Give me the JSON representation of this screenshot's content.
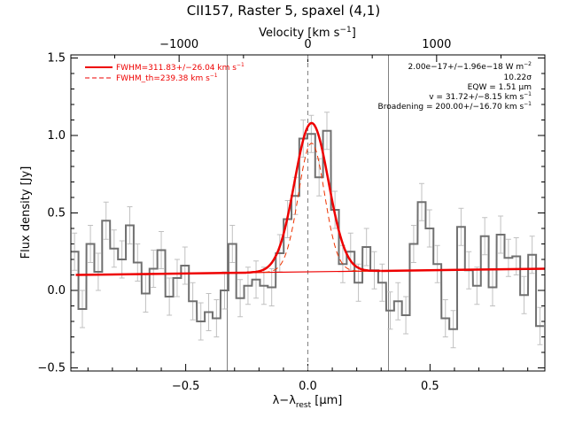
{
  "chart_data": {
    "type": "line",
    "title": "CII157, Raster 5, spaxel (4,1)",
    "xlabel": "λ−λ",
    "xlabel_sub": "rest",
    "xlabel_unit": " [μm]",
    "ylabel": "Flux density [Jy]",
    "top_xlabel": "Velocity [km s",
    "top_xlabel_sup": "−1",
    "top_xlabel_end": "]",
    "xlim": [
      -0.97,
      0.97
    ],
    "ylim": [
      -0.52,
      1.52
    ],
    "x_ticks": [
      -0.5,
      0.0,
      0.5
    ],
    "x_tick_labels": [
      "−0.5",
      "0.0",
      "0.5"
    ],
    "y_ticks": [
      -0.5,
      0.0,
      0.5,
      1.0,
      1.5
    ],
    "y_tick_labels": [
      "−0.5",
      "0.0",
      "0.5",
      "1.0",
      "1.5"
    ],
    "top_ticks_um": [
      -0.527,
      0.0,
      0.527
    ],
    "top_tick_labels": [
      "−1000",
      "0",
      "1000"
    ],
    "vlines_solid_um": [
      -0.33,
      0.33
    ],
    "vline_dashed_um": 0.0,
    "legend": [
      {
        "label": "FWHM=311.83+/−26.04 km s",
        "sup": "−1",
        "style": "solid",
        "color": "#ee0000"
      },
      {
        "label": "FWHM_th=239.38 km s",
        "sup": "−1",
        "style": "dashed",
        "color": "#ee0000"
      }
    ],
    "legend_position": "top-left",
    "annotations": [
      {
        "text": "2.00e−17+/−1.96e−18 W m",
        "sup": "−2"
      },
      {
        "text": "10.22σ",
        "sup": ""
      },
      {
        "text": "EQW = 1.51 μm",
        "sup": ""
      },
      {
        "text": "v = 31.72+/−8.15 km s",
        "sup": "−1"
      },
      {
        "text": "Broadening = 200.00+/−16.70 km s",
        "sup": "−1"
      }
    ],
    "annotation_position": "top-right",
    "series": [
      {
        "name": "",
        "style": "histogram",
        "color": "#707070",
        "bin_width": 0.0323,
        "x": [
          -0.955,
          -0.923,
          -0.89,
          -0.858,
          -0.826,
          -0.793,
          -0.761,
          -0.729,
          -0.697,
          -0.664,
          -0.632,
          -0.6,
          -0.567,
          -0.535,
          -0.503,
          -0.471,
          -0.438,
          -0.406,
          -0.374,
          -0.341,
          -0.309,
          -0.277,
          -0.245,
          -0.212,
          -0.18,
          -0.148,
          -0.115,
          -0.083,
          -0.051,
          -0.019,
          0.014,
          0.046,
          0.078,
          0.111,
          0.143,
          0.175,
          0.207,
          0.24,
          0.272,
          0.304,
          0.337,
          0.369,
          0.401,
          0.433,
          0.466,
          0.498,
          0.53,
          0.563,
          0.595,
          0.627,
          0.659,
          0.692,
          0.724,
          0.756,
          0.789,
          0.821,
          0.853,
          0.885,
          0.918,
          0.95
        ],
        "y": [
          0.25,
          -0.12,
          0.3,
          0.12,
          0.45,
          0.27,
          0.2,
          0.42,
          0.18,
          -0.02,
          0.14,
          0.26,
          -0.04,
          0.08,
          0.16,
          -0.07,
          -0.2,
          -0.14,
          -0.18,
          0.0,
          0.3,
          -0.05,
          0.03,
          0.07,
          0.03,
          0.02,
          0.24,
          0.46,
          0.61,
          0.98,
          1.01,
          0.73,
          1.03,
          0.52,
          0.17,
          0.25,
          0.05,
          0.28,
          0.13,
          0.05,
          -0.13,
          -0.07,
          -0.16,
          0.3,
          0.57,
          0.4,
          0.17,
          -0.18,
          -0.25,
          0.41,
          0.13,
          0.03,
          0.35,
          0.02,
          0.36,
          0.21,
          0.22,
          -0.03,
          0.23,
          -0.23
        ],
        "errors": [
          0.12,
          0.12,
          0.12,
          0.12,
          0.12,
          0.12,
          0.12,
          0.12,
          0.12,
          0.12,
          0.12,
          0.12,
          0.12,
          0.12,
          0.12,
          0.12,
          0.12,
          0.12,
          0.12,
          0.12,
          0.12,
          0.12,
          0.12,
          0.12,
          0.12,
          0.12,
          0.12,
          0.12,
          0.12,
          0.12,
          0.12,
          0.12,
          0.12,
          0.12,
          0.12,
          0.12,
          0.12,
          0.12,
          0.12,
          0.12,
          0.12,
          0.12,
          0.12,
          0.12,
          0.12,
          0.12,
          0.12,
          0.12,
          0.12,
          0.12,
          0.12,
          0.12,
          0.12,
          0.12,
          0.12,
          0.12,
          0.12,
          0.12,
          0.12,
          0.12
        ]
      }
    ],
    "fit": {
      "color": "#ee0000",
      "baseline_x": [
        -0.95,
        0.97
      ],
      "baseline_y": [
        0.1,
        0.14
      ],
      "gaussian_center_um": 0.015,
      "gaussian_amplitude": 0.96,
      "gaussian_sigma_um": 0.0695,
      "gaussian_th_sigma_um": 0.0533,
      "gaussian_th_amplitude": 0.83
    }
  }
}
